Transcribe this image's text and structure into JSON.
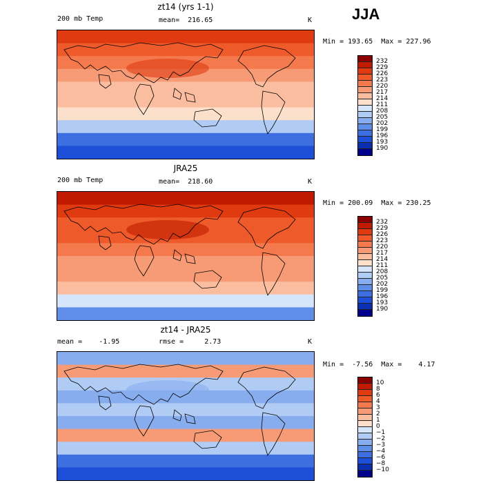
{
  "season": "JJA",
  "panels": [
    {
      "title": "zt14 (yrs 1-1)",
      "left_label": "200 mb Temp",
      "mid_label": "mean=  216.65",
      "units": "K",
      "minmax": "Min = 193.65  Max = 227.96",
      "colorbar": {
        "labels": [
          "232",
          "229",
          "226",
          "223",
          "220",
          "217",
          "214",
          "211",
          "208",
          "205",
          "202",
          "199",
          "196",
          "193",
          "190"
        ],
        "colors": [
          "#8b0000",
          "#c01a00",
          "#e03a10",
          "#ef5a2a",
          "#f47a4e",
          "#f79b76",
          "#fbbd9f",
          "#fde0cc",
          "#d6e6fa",
          "#b0cbf4",
          "#88adee",
          "#5f8ee8",
          "#3d6fe0",
          "#1d4fd8",
          "#0a2fb0",
          "#00008b"
        ]
      },
      "map_bands": [
        "#e03a10",
        "#ef5a2a",
        "#f47a4e",
        "#f79b76",
        "#fbbd9f",
        "#fbbd9f",
        "#fde0cc",
        "#b0cbf4",
        "#3d6fe0",
        "#1d4fd8"
      ]
    },
    {
      "title": "JRA25",
      "left_label": "200 mb Temp",
      "mid_label": "mean=  218.60",
      "units": "K",
      "minmax": "Min = 200.09  Max = 230.25",
      "colorbar": {
        "labels": [
          "232",
          "229",
          "226",
          "223",
          "220",
          "217",
          "214",
          "211",
          "208",
          "205",
          "202",
          "199",
          "196",
          "193",
          "190"
        ],
        "colors": [
          "#8b0000",
          "#c01a00",
          "#e03a10",
          "#ef5a2a",
          "#f47a4e",
          "#f79b76",
          "#fbbd9f",
          "#fde0cc",
          "#d6e6fa",
          "#b0cbf4",
          "#88adee",
          "#5f8ee8",
          "#3d6fe0",
          "#1d4fd8",
          "#0a2fb0",
          "#00008b"
        ]
      },
      "map_bands": [
        "#c01a00",
        "#e03a10",
        "#ef5a2a",
        "#ef5a2a",
        "#f47a4e",
        "#f79b76",
        "#f79b76",
        "#fbbd9f",
        "#d6e6fa",
        "#5f8ee8"
      ]
    },
    {
      "title": "zt14 - JRA25",
      "left_label": "mean =    -1.95",
      "mid_label": "rmse =     2.73",
      "units": "K",
      "minmax": "Min =  -7.56  Max =    4.17",
      "colorbar": {
        "labels": [
          "10",
          "8",
          "6",
          "4",
          "3",
          "2",
          "1",
          "0",
          "−1",
          "−2",
          "−3",
          "−4",
          "−6",
          "−8",
          "−10"
        ],
        "colors": [
          "#8b0000",
          "#c01a00",
          "#e03a10",
          "#ef5a2a",
          "#f47a4e",
          "#f79b76",
          "#fbbd9f",
          "#fde0cc",
          "#d6e6fa",
          "#b0cbf4",
          "#88adee",
          "#5f8ee8",
          "#3d6fe0",
          "#1d4fd8",
          "#0a2fb0",
          "#00008b"
        ]
      },
      "map_bands": [
        "#88adee",
        "#f79b76",
        "#b0cbf4",
        "#88adee",
        "#b0cbf4",
        "#88adee",
        "#f79b76",
        "#b0cbf4",
        "#3d6fe0",
        "#1d4fd8"
      ]
    }
  ]
}
